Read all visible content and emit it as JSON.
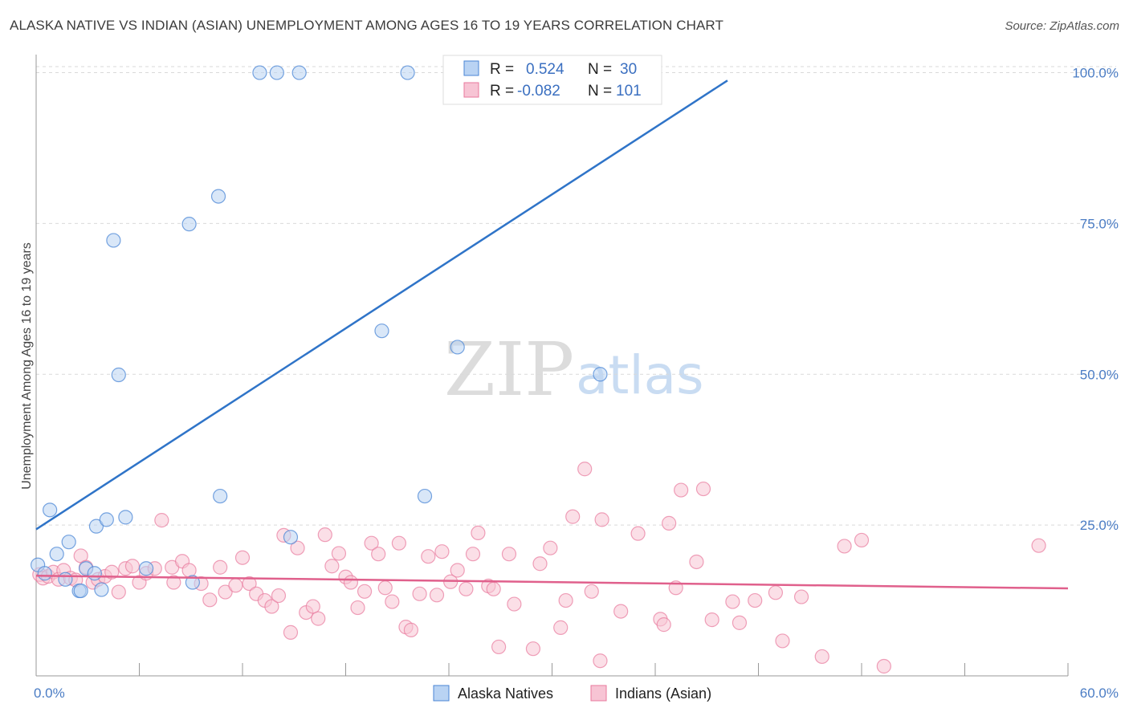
{
  "title": "ALASKA NATIVE VS INDIAN (ASIAN) UNEMPLOYMENT AMONG AGES 16 TO 19 YEARS CORRELATION CHART",
  "source": "Source: ZipAtlas.com",
  "watermark": {
    "zip": "ZIP",
    "atlas": "atlas"
  },
  "colors": {
    "blue": "#4a86d6",
    "blue_fill": "#b9d3f3",
    "blue_line": "#2f74c8",
    "pink": "#e8799c",
    "pink_fill": "#f7c4d4",
    "pink_line": "#e0608c",
    "grid": "#d9d9d9",
    "tick_label": "#4a7cc4"
  },
  "chart_data": {
    "type": "scatter",
    "title": "ALASKA NATIVE VS INDIAN (ASIAN) UNEMPLOYMENT AMONG AGES 16 TO 19 YEARS CORRELATION CHART",
    "xlabel": "",
    "ylabel": "Unemployment Among Ages 16 to 19 years",
    "xlim": [
      0,
      60
    ],
    "ylim": [
      0,
      103
    ],
    "x_tick_labels": [
      "0.0%",
      "60.0%"
    ],
    "y_ticks": [
      25,
      50,
      75,
      100
    ],
    "y_tick_labels": [
      "25.0%",
      "50.0%",
      "75.0%",
      "100.0%"
    ],
    "grid": true,
    "legend_placement": "top-center",
    "legend": [
      {
        "r_label": "R =",
        "r_value": "0.524",
        "n_label": "N =",
        "n_value": "30"
      },
      {
        "r_label": "R =",
        "r_value": "-0.082",
        "n_label": "N =",
        "n_value": "101"
      }
    ],
    "series": [
      {
        "name": "Alaska Natives",
        "color": "#4a86d6",
        "trend": {
          "x": [
            0,
            40.2
          ],
          "y": [
            24.3,
            98.7
          ]
        },
        "points": [
          [
            0.1,
            18.4
          ],
          [
            0.5,
            17.0
          ],
          [
            0.8,
            27.5
          ],
          [
            1.2,
            20.2
          ],
          [
            1.9,
            22.2
          ],
          [
            1.7,
            16.0
          ],
          [
            2.5,
            14.1
          ],
          [
            2.6,
            14.1
          ],
          [
            2.9,
            17.8
          ],
          [
            3.4,
            17.0
          ],
          [
            3.5,
            24.8
          ],
          [
            3.8,
            14.3
          ],
          [
            4.1,
            25.9
          ],
          [
            4.5,
            72.2
          ],
          [
            4.8,
            49.9
          ],
          [
            5.2,
            26.3
          ],
          [
            6.4,
            17.8
          ],
          [
            8.9,
            74.9
          ],
          [
            9.1,
            15.5
          ],
          [
            10.6,
            79.5
          ],
          [
            10.7,
            29.8
          ],
          [
            13.0,
            100.0
          ],
          [
            14.0,
            100.0
          ],
          [
            14.8,
            23.0
          ],
          [
            15.3,
            100.0
          ],
          [
            20.1,
            57.2
          ],
          [
            21.6,
            100.0
          ],
          [
            22.6,
            29.8
          ],
          [
            24.5,
            54.5
          ],
          [
            32.8,
            50.0
          ]
        ]
      },
      {
        "name": "Indians (Asian)",
        "color": "#e8799c",
        "trend": {
          "x": [
            0,
            60
          ],
          "y": [
            16.6,
            14.5
          ]
        },
        "points": [
          [
            0.2,
            16.8
          ],
          [
            0.4,
            16.2
          ],
          [
            0.7,
            16.5
          ],
          [
            1.0,
            17.2
          ],
          [
            1.3,
            16.0
          ],
          [
            1.6,
            17.5
          ],
          [
            2.0,
            16.2
          ],
          [
            2.3,
            15.9
          ],
          [
            2.6,
            19.9
          ],
          [
            2.9,
            18.0
          ],
          [
            3.3,
            15.5
          ],
          [
            3.6,
            16.0
          ],
          [
            4.0,
            16.5
          ],
          [
            4.4,
            17.2
          ],
          [
            4.8,
            13.9
          ],
          [
            5.2,
            17.8
          ],
          [
            5.6,
            18.2
          ],
          [
            6.0,
            15.5
          ],
          [
            6.4,
            17.0
          ],
          [
            6.9,
            17.8
          ],
          [
            7.3,
            25.8
          ],
          [
            7.9,
            18.0
          ],
          [
            8.0,
            15.5
          ],
          [
            8.5,
            19.0
          ],
          [
            8.9,
            17.5
          ],
          [
            9.6,
            15.3
          ],
          [
            10.1,
            12.6
          ],
          [
            10.7,
            18.0
          ],
          [
            11.0,
            13.9
          ],
          [
            11.6,
            15.0
          ],
          [
            12.0,
            19.6
          ],
          [
            12.4,
            15.3
          ],
          [
            12.8,
            13.6
          ],
          [
            13.3,
            12.5
          ],
          [
            13.7,
            11.5
          ],
          [
            14.1,
            13.3
          ],
          [
            14.4,
            23.3
          ],
          [
            14.8,
            7.2
          ],
          [
            15.2,
            21.2
          ],
          [
            15.7,
            10.5
          ],
          [
            16.1,
            11.5
          ],
          [
            16.4,
            9.5
          ],
          [
            16.8,
            23.4
          ],
          [
            17.2,
            18.2
          ],
          [
            17.6,
            20.3
          ],
          [
            18.0,
            16.4
          ],
          [
            18.3,
            15.5
          ],
          [
            18.7,
            11.3
          ],
          [
            19.1,
            14.0
          ],
          [
            19.5,
            22.0
          ],
          [
            19.9,
            20.2
          ],
          [
            20.3,
            14.6
          ],
          [
            20.7,
            12.3
          ],
          [
            21.1,
            22.0
          ],
          [
            21.5,
            8.1
          ],
          [
            21.8,
            7.6
          ],
          [
            22.3,
            13.6
          ],
          [
            22.8,
            19.8
          ],
          [
            23.3,
            13.4
          ],
          [
            23.6,
            20.6
          ],
          [
            24.1,
            15.6
          ],
          [
            24.5,
            17.5
          ],
          [
            25.0,
            14.4
          ],
          [
            25.4,
            20.2
          ],
          [
            25.7,
            23.7
          ],
          [
            26.3,
            14.9
          ],
          [
            26.6,
            14.4
          ],
          [
            26.9,
            4.8
          ],
          [
            27.5,
            20.2
          ],
          [
            27.8,
            11.9
          ],
          [
            28.9,
            4.5
          ],
          [
            29.3,
            18.6
          ],
          [
            29.9,
            21.2
          ],
          [
            30.5,
            8.0
          ],
          [
            30.8,
            12.5
          ],
          [
            31.2,
            26.4
          ],
          [
            31.9,
            34.3
          ],
          [
            32.3,
            14.0
          ],
          [
            32.8,
            2.5
          ],
          [
            32.9,
            25.9
          ],
          [
            34.0,
            10.7
          ],
          [
            35.0,
            23.6
          ],
          [
            36.3,
            9.4
          ],
          [
            36.5,
            8.5
          ],
          [
            36.8,
            25.3
          ],
          [
            37.2,
            14.6
          ],
          [
            37.5,
            30.8
          ],
          [
            38.4,
            18.9
          ],
          [
            38.8,
            31.0
          ],
          [
            39.3,
            9.3
          ],
          [
            40.5,
            12.3
          ],
          [
            40.9,
            8.8
          ],
          [
            41.8,
            12.5
          ],
          [
            43.0,
            13.8
          ],
          [
            43.4,
            5.8
          ],
          [
            44.5,
            13.1
          ],
          [
            45.7,
            3.2
          ],
          [
            47.0,
            21.5
          ],
          [
            48.0,
            22.5
          ],
          [
            49.3,
            1.6
          ],
          [
            58.3,
            21.6
          ]
        ]
      }
    ]
  },
  "bottom_legend": [
    {
      "label": "Alaska Natives"
    },
    {
      "label": "Indians (Asian)"
    }
  ]
}
